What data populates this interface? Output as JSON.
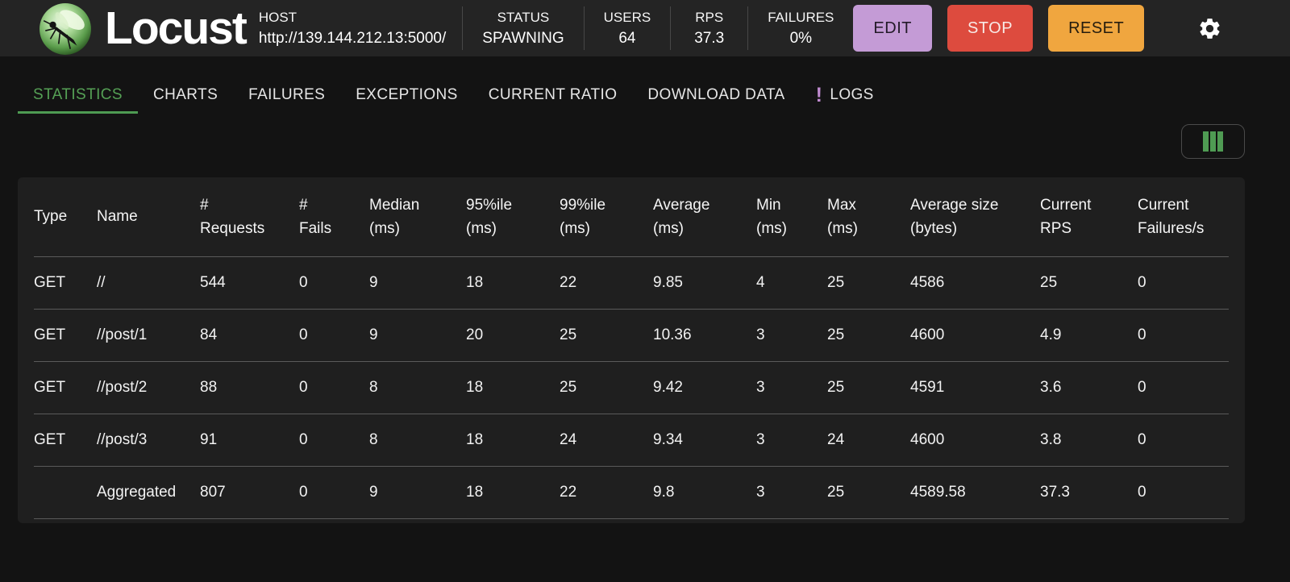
{
  "header": {
    "title": "Locust",
    "host": {
      "label": "HOST",
      "value": "http://139.144.212.13:5000/"
    },
    "stats": [
      {
        "label": "STATUS",
        "value": "SPAWNING"
      },
      {
        "label": "USERS",
        "value": "64"
      },
      {
        "label": "RPS",
        "value": "37.3"
      },
      {
        "label": "FAILURES",
        "value": "0%"
      }
    ],
    "buttons": [
      {
        "label": "EDIT",
        "color": "#c49bd6",
        "text_color": "#231a28"
      },
      {
        "label": "STOP",
        "color": "#dd4b3e",
        "text_color": "#f8eae6"
      },
      {
        "label": "RESET",
        "color": "#f0a63f",
        "text_color": "#251c0e"
      }
    ]
  },
  "tabs": [
    {
      "label": "STATISTICS",
      "active": true
    },
    {
      "label": "CHARTS"
    },
    {
      "label": "FAILURES"
    },
    {
      "label": "EXCEPTIONS"
    },
    {
      "label": "CURRENT RATIO"
    },
    {
      "label": "DOWNLOAD DATA"
    },
    {
      "label": "LOGS",
      "badge": "!"
    }
  ],
  "table": {
    "columns": [
      [
        "Type",
        ""
      ],
      [
        "Name",
        ""
      ],
      [
        "#",
        "Requests"
      ],
      [
        "#",
        "Fails"
      ],
      [
        "Median",
        "(ms)"
      ],
      [
        "95%ile",
        "(ms)"
      ],
      [
        "99%ile",
        "(ms)"
      ],
      [
        "Average",
        "(ms)"
      ],
      [
        "Min",
        "(ms)"
      ],
      [
        "Max",
        "(ms)"
      ],
      [
        "Average size",
        "(bytes)"
      ],
      [
        "Current",
        "RPS"
      ],
      [
        "Current",
        "Failures/s"
      ]
    ],
    "rows": [
      [
        "GET",
        "//",
        "544",
        "0",
        "9",
        "18",
        "22",
        "9.85",
        "4",
        "25",
        "4586",
        "25",
        "0"
      ],
      [
        "GET",
        "//post/1",
        "84",
        "0",
        "9",
        "20",
        "25",
        "10.36",
        "3",
        "25",
        "4600",
        "4.9",
        "0"
      ],
      [
        "GET",
        "//post/2",
        "88",
        "0",
        "8",
        "18",
        "25",
        "9.42",
        "3",
        "25",
        "4591",
        "3.6",
        "0"
      ],
      [
        "GET",
        "//post/3",
        "91",
        "0",
        "8",
        "18",
        "24",
        "9.34",
        "3",
        "24",
        "4600",
        "3.8",
        "0"
      ],
      [
        "",
        "Aggregated",
        "807",
        "0",
        "9",
        "18",
        "22",
        "9.8",
        "3",
        "25",
        "4589.58",
        "37.3",
        "0"
      ]
    ]
  },
  "colors": {
    "accent_green": "#55a055",
    "badge_lavender": "#c08bd0",
    "edit_purple": "#c49bd6",
    "stop_red": "#dd4b3e",
    "reset_orange": "#f0a63f",
    "header_bg": "#242424",
    "page_bg": "#131313",
    "card_bg": "#1f1f1f"
  }
}
